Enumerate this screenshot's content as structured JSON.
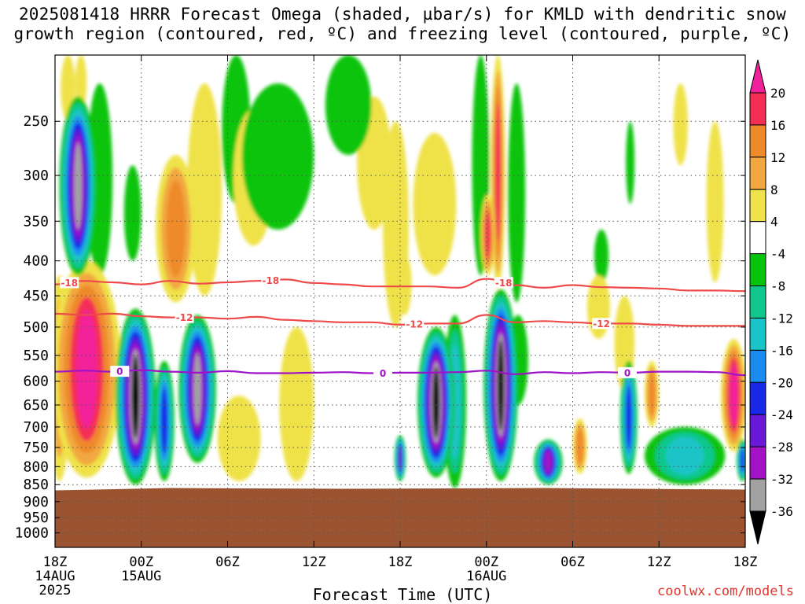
{
  "title": {
    "line1": "2025081418 HRRR Forecast Omega (shaded, µbar/s) for KMLD with dendritic snow",
    "line2": "growth region (contoured, red, ºC) and freezing level (contoured, purple, ºC)"
  },
  "credit": "coolwx.com/models",
  "chart_data": {
    "type": "heatmap",
    "xlabel": "Forecast Time (UTC)",
    "x_ticks": [
      {
        "hours": 0,
        "label": "18Z",
        "sub1": "14AUG",
        "sub2": "2025"
      },
      {
        "hours": 6,
        "label": "00Z",
        "sub1": "15AUG",
        "sub2": ""
      },
      {
        "hours": 12,
        "label": "06Z",
        "sub1": "",
        "sub2": ""
      },
      {
        "hours": 18,
        "label": "12Z",
        "sub1": "",
        "sub2": ""
      },
      {
        "hours": 24,
        "label": "18Z",
        "sub1": "",
        "sub2": ""
      },
      {
        "hours": 30,
        "label": "00Z",
        "sub1": "16AUG",
        "sub2": ""
      },
      {
        "hours": 36,
        "label": "06Z",
        "sub1": "",
        "sub2": ""
      },
      {
        "hours": 42,
        "label": "12Z",
        "sub1": "",
        "sub2": ""
      },
      {
        "hours": 48,
        "label": "18Z",
        "sub1": "",
        "sub2": ""
      }
    ],
    "xlim": [
      0,
      48
    ],
    "y_ticks": [
      "250",
      "300",
      "350",
      "400",
      "450",
      "500",
      "550",
      "600",
      "650",
      "700",
      "750",
      "800",
      "850",
      "900",
      "950",
      "1000"
    ],
    "ylim": [
      200,
      1050
    ],
    "yscale": "log",
    "ground_pressure": 862,
    "colors": {
      "ground": "#9b5432",
      "snow_growth_contour": "#ee4a4a",
      "freezing_contour": "#9e12c8"
    },
    "colorbar": {
      "levels": [
        "20",
        "16",
        "12",
        "8",
        "4",
        "-4",
        "-8",
        "-12",
        "-16",
        "-20",
        "-24",
        "-28",
        "-32",
        "-36"
      ],
      "bins": [
        {
          "lo": 16,
          "hi": 20,
          "color": "#f52e55"
        },
        {
          "lo": 12,
          "hi": 16,
          "color": "#ef8a2a"
        },
        {
          "lo": 8,
          "hi": 12,
          "color": "#f2a841"
        },
        {
          "lo": 4,
          "hi": 8,
          "color": "#efe24a"
        },
        {
          "lo": -4,
          "hi": 4,
          "color": "#ffffff"
        },
        {
          "lo": -8,
          "hi": -4,
          "color": "#09c40c"
        },
        {
          "lo": -12,
          "hi": -8,
          "color": "#11c78e"
        },
        {
          "lo": -16,
          "hi": -12,
          "color": "#1ac4c8"
        },
        {
          "lo": -20,
          "hi": -16,
          "color": "#1a8cf0"
        },
        {
          "lo": -24,
          "hi": -20,
          "color": "#1828e6"
        },
        {
          "lo": -28,
          "hi": -24,
          "color": "#6818d6"
        },
        {
          "lo": -32,
          "hi": -28,
          "color": "#a412c8"
        },
        {
          "lo": -36,
          "hi": -32,
          "color": "#a2a2a2"
        }
      ],
      "over_color": "#f2209a",
      "under_color": "#000000"
    },
    "omega_features": [
      {
        "t": 0.9,
        "p": 225,
        "dt": 0.5,
        "top": 200,
        "bot": 250,
        "v": 8
      },
      {
        "t": 1.8,
        "p": 215,
        "dt": 0.4,
        "top": 200,
        "bot": 240,
        "v": 8
      },
      {
        "t": 1.6,
        "p": 330,
        "dt": 1.3,
        "top": 230,
        "bot": 420,
        "v": -34
      },
      {
        "t": 2.2,
        "p": 620,
        "dt": 2.4,
        "top": 400,
        "bot": 830,
        "v": 24
      },
      {
        "t": 0.3,
        "p": 600,
        "dt": 0.8,
        "top": 420,
        "bot": 840,
        "v": 10
      },
      {
        "t": 3.1,
        "p": 300,
        "dt": 0.9,
        "top": 220,
        "bot": 420,
        "v": -6
      },
      {
        "t": 5.6,
        "p": 650,
        "dt": 1.4,
        "top": 470,
        "bot": 850,
        "v": -40
      },
      {
        "t": 5.4,
        "p": 340,
        "dt": 0.6,
        "top": 290,
        "bot": 400,
        "v": -6
      },
      {
        "t": 7.6,
        "p": 650,
        "dt": 0.7,
        "top": 560,
        "bot": 840,
        "v": -22
      },
      {
        "t": 8.4,
        "p": 330,
        "dt": 1.4,
        "top": 280,
        "bot": 460,
        "v": 14
      },
      {
        "t": 9.9,
        "p": 610,
        "dt": 1.3,
        "top": 480,
        "bot": 790,
        "v": -33
      },
      {
        "t": 10.4,
        "p": 320,
        "dt": 1.2,
        "top": 220,
        "bot": 450,
        "v": 7
      },
      {
        "t": 12.6,
        "p": 240,
        "dt": 1.0,
        "top": 200,
        "bot": 330,
        "v": -6
      },
      {
        "t": 13.8,
        "p": 330,
        "dt": 1.4,
        "top": 240,
        "bot": 380,
        "v": 6
      },
      {
        "t": 12.8,
        "p": 720,
        "dt": 1.5,
        "top": 630,
        "bot": 840,
        "v": 6
      },
      {
        "t": 15.5,
        "p": 280,
        "dt": 2.5,
        "top": 220,
        "bot": 360,
        "v": -6
      },
      {
        "t": 16.8,
        "p": 640,
        "dt": 1.2,
        "top": 500,
        "bot": 840,
        "v": 6
      },
      {
        "t": 20.4,
        "p": 220,
        "dt": 1.6,
        "top": 200,
        "bot": 280,
        "v": -7
      },
      {
        "t": 22.2,
        "p": 280,
        "dt": 1.2,
        "top": 230,
        "bot": 360,
        "v": 6
      },
      {
        "t": 23.7,
        "p": 380,
        "dt": 0.9,
        "top": 250,
        "bot": 500,
        "v": 8
      },
      {
        "t": 24.3,
        "p": 430,
        "dt": 0.5,
        "top": 390,
        "bot": 480,
        "v": 7
      },
      {
        "t": 24.0,
        "p": 780,
        "dt": 0.4,
        "top": 720,
        "bot": 840,
        "v": -28
      },
      {
        "t": 26.5,
        "p": 640,
        "dt": 1.3,
        "top": 500,
        "bot": 830,
        "v": -42
      },
      {
        "t": 27.8,
        "p": 650,
        "dt": 0.8,
        "top": 480,
        "bot": 860,
        "v": -14
      },
      {
        "t": 26.4,
        "p": 350,
        "dt": 1.5,
        "top": 260,
        "bot": 420,
        "v": 6
      },
      {
        "t": 29.6,
        "p": 250,
        "dt": 0.6,
        "top": 200,
        "bot": 420,
        "v": -6
      },
      {
        "t": 30.1,
        "p": 380,
        "dt": 0.5,
        "top": 320,
        "bot": 420,
        "v": 20
      },
      {
        "t": 30.8,
        "p": 280,
        "dt": 0.5,
        "top": 200,
        "bot": 440,
        "v": 18
      },
      {
        "t": 31.0,
        "p": 620,
        "dt": 1.2,
        "top": 440,
        "bot": 840,
        "v": -42
      },
      {
        "t": 32.1,
        "p": 330,
        "dt": 0.6,
        "top": 220,
        "bot": 460,
        "v": -6
      },
      {
        "t": 32.2,
        "p": 560,
        "dt": 0.7,
        "top": 480,
        "bot": 650,
        "v": -7
      },
      {
        "t": 34.3,
        "p": 800,
        "dt": 1.0,
        "top": 730,
        "bot": 850,
        "v": -30
      },
      {
        "t": 36.5,
        "p": 740,
        "dt": 0.5,
        "top": 680,
        "bot": 820,
        "v": 14
      },
      {
        "t": 38.0,
        "p": 400,
        "dt": 0.5,
        "top": 360,
        "bot": 430,
        "v": -6
      },
      {
        "t": 37.8,
        "p": 450,
        "dt": 0.8,
        "top": 420,
        "bot": 520,
        "v": 6
      },
      {
        "t": 39.6,
        "p": 540,
        "dt": 0.7,
        "top": 450,
        "bot": 620,
        "v": 6
      },
      {
        "t": 39.9,
        "p": 680,
        "dt": 0.6,
        "top": 560,
        "bot": 820,
        "v": -22
      },
      {
        "t": 40.0,
        "p": 280,
        "dt": 0.3,
        "top": 250,
        "bot": 330,
        "v": -6
      },
      {
        "t": 41.5,
        "p": 620,
        "dt": 0.5,
        "top": 560,
        "bot": 700,
        "v": 14
      },
      {
        "t": 43.8,
        "p": 780,
        "dt": 2.8,
        "top": 700,
        "bot": 850,
        "v": -14
      },
      {
        "t": 47.2,
        "p": 630,
        "dt": 0.9,
        "top": 520,
        "bot": 760,
        "v": 22
      },
      {
        "t": 47.8,
        "p": 790,
        "dt": 0.4,
        "top": 730,
        "bot": 840,
        "v": -24
      },
      {
        "t": 45.9,
        "p": 350,
        "dt": 0.6,
        "top": 250,
        "bot": 430,
        "v": 6
      },
      {
        "t": 43.5,
        "p": 250,
        "dt": 0.5,
        "top": 220,
        "bot": 290,
        "v": 6
      }
    ],
    "contours": [
      {
        "label": "-18",
        "kind": "snow_growth",
        "t": [
          0,
          2,
          4,
          6,
          8,
          10,
          12,
          14,
          16,
          18,
          20,
          22,
          24,
          26,
          28,
          30,
          32,
          34,
          36,
          38,
          40,
          42,
          44,
          46,
          48
        ],
        "p": [
          433,
          428,
          430,
          433,
          428,
          432,
          430,
          428,
          426,
          431,
          433,
          436,
          436,
          436,
          438,
          425,
          434,
          438,
          434,
          437,
          438,
          439,
          442,
          442,
          443
        ],
        "label_hours": [
          1.0,
          15.0,
          31.2
        ]
      },
      {
        "label": "-12",
        "kind": "snow_growth",
        "t": [
          0,
          2,
          4,
          6,
          8,
          10,
          12,
          14,
          16,
          18,
          20,
          22,
          24,
          26,
          28,
          30,
          32,
          34,
          36,
          38,
          40,
          42,
          44,
          46,
          48
        ],
        "p": [
          478,
          480,
          478,
          482,
          484,
          484,
          486,
          483,
          488,
          490,
          492,
          492,
          496,
          494,
          494,
          480,
          492,
          490,
          492,
          494,
          494,
          496,
          498,
          498,
          498
        ],
        "label_hours": [
          9.0,
          25.0,
          38.0
        ]
      },
      {
        "label": "0",
        "kind": "freezing",
        "t": [
          0,
          2,
          4,
          6,
          8,
          10,
          12,
          14,
          16,
          18,
          20,
          22,
          24,
          26,
          28,
          30,
          32,
          34,
          36,
          38,
          40,
          42,
          44,
          46,
          48
        ],
        "p": [
          581,
          579,
          581,
          578,
          581,
          583,
          580,
          584,
          584,
          583,
          582,
          584,
          583,
          583,
          582,
          579,
          586,
          582,
          584,
          582,
          583,
          581,
          581,
          582,
          588
        ],
        "label_hours": [
          4.5,
          22.8,
          39.8
        ]
      }
    ]
  }
}
